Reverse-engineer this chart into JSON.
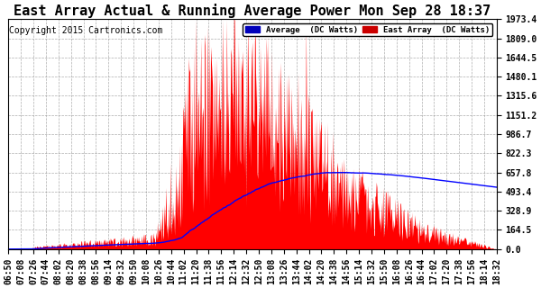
{
  "title": "East Array Actual & Running Average Power Mon Sep 28 18:37",
  "copyright": "Copyright 2015 Cartronics.com",
  "ymax": 1973.4,
  "yticks": [
    0.0,
    164.5,
    328.9,
    493.4,
    657.8,
    822.3,
    986.7,
    1151.2,
    1315.6,
    1480.1,
    1644.5,
    1809.0,
    1973.4
  ],
  "legend_avg_label": "Average  (DC Watts)",
  "legend_east_label": "East Array  (DC Watts)",
  "avg_color": "#0000ff",
  "east_color": "#ff0000",
  "avg_bg_color": "#0000bb",
  "east_bg_color": "#cc0000",
  "background_color": "#ffffff",
  "plot_bg_color": "#ffffff",
  "grid_color": "#999999",
  "title_fontsize": 11,
  "copyright_fontsize": 7,
  "tick_fontsize": 7,
  "xtick_labels": [
    "06:50",
    "07:08",
    "07:26",
    "07:44",
    "08:02",
    "08:20",
    "08:38",
    "08:56",
    "09:14",
    "09:32",
    "09:50",
    "10:08",
    "10:26",
    "10:44",
    "11:02",
    "11:20",
    "11:38",
    "11:56",
    "12:14",
    "12:32",
    "12:50",
    "13:08",
    "13:26",
    "13:44",
    "14:02",
    "14:20",
    "14:38",
    "14:56",
    "15:14",
    "15:32",
    "15:50",
    "16:08",
    "16:26",
    "16:44",
    "17:02",
    "17:20",
    "17:38",
    "17:56",
    "18:14",
    "18:32"
  ]
}
